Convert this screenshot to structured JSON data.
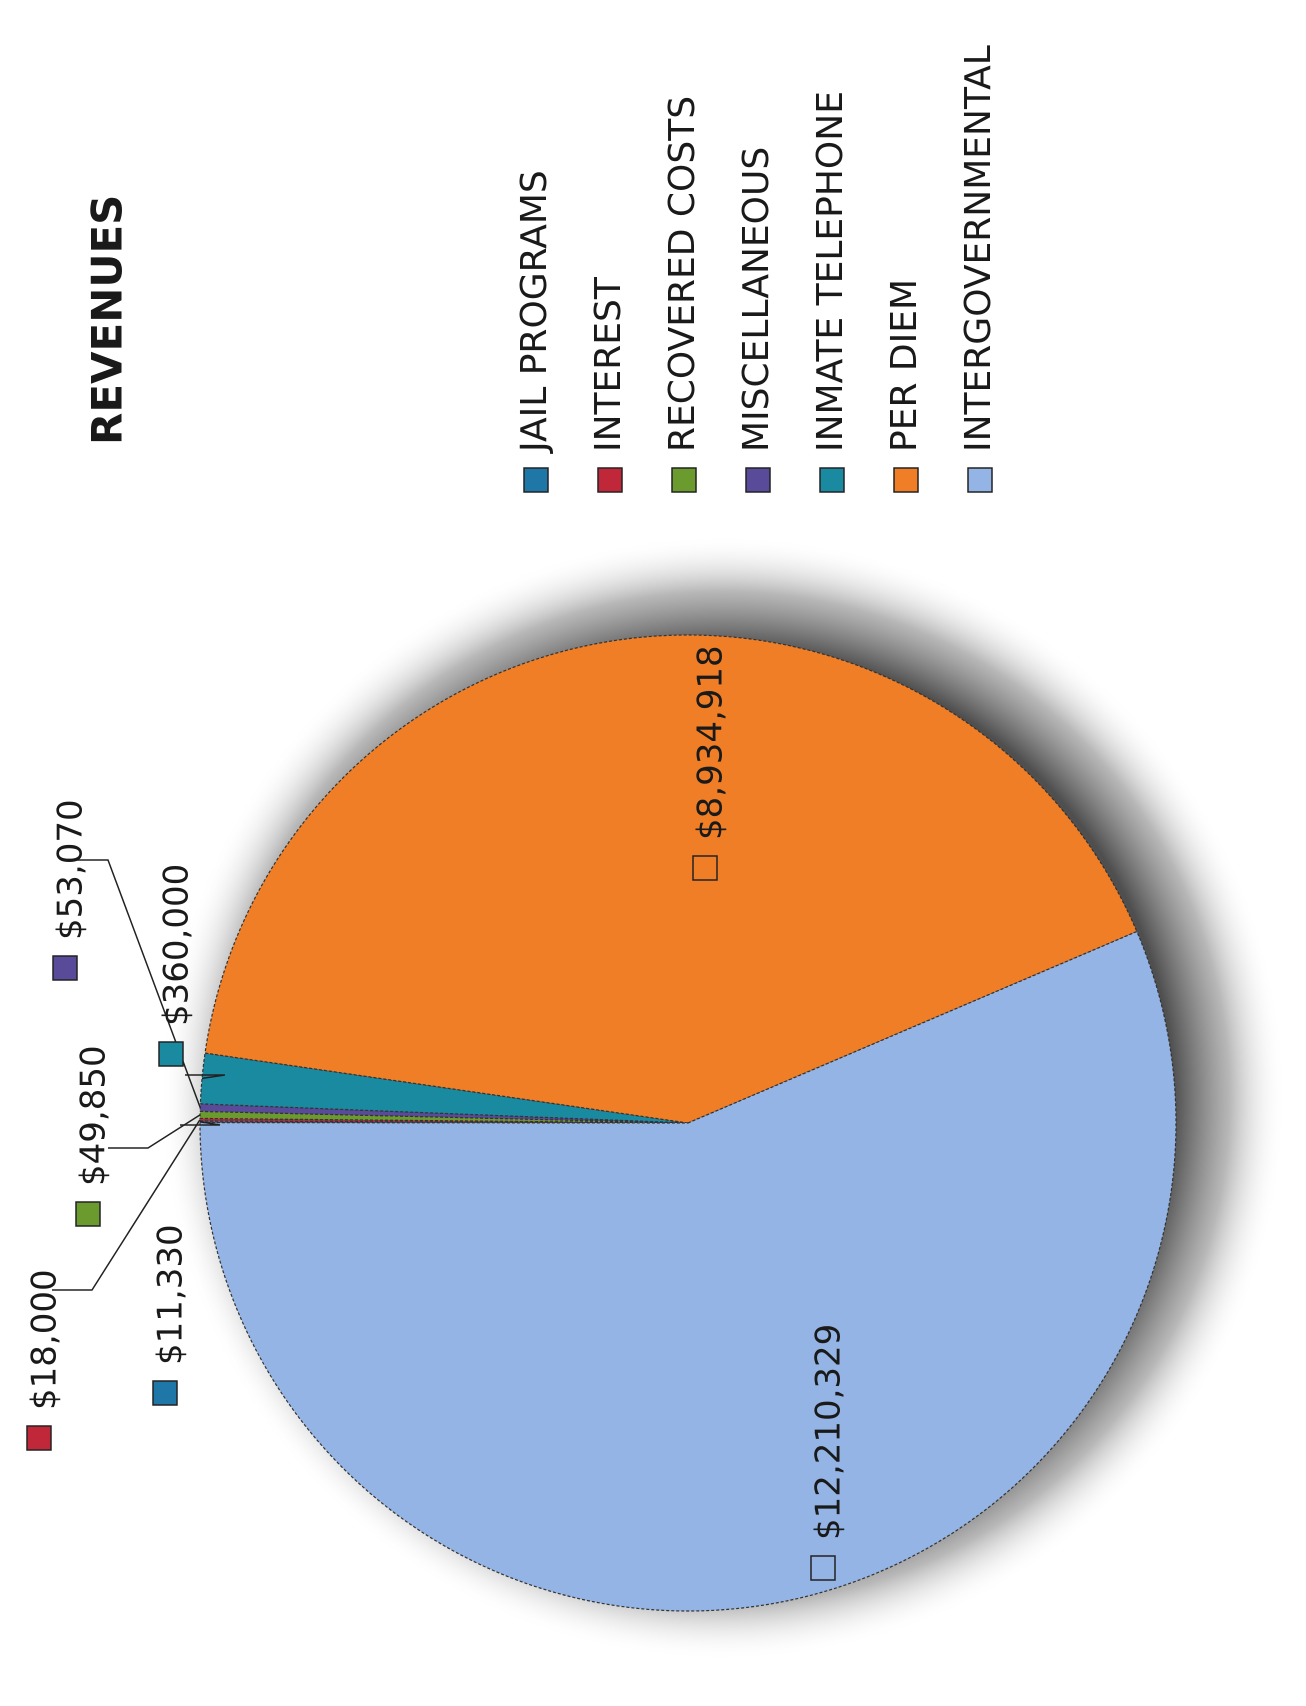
{
  "chart_data": {
    "type": "pie",
    "title": "REVENUES",
    "orientation": "rotated 90 degrees clockwise on the page",
    "legend_position": "right",
    "slices": [
      {
        "name": "JAIL PROGRAMS",
        "value": 11330,
        "label": "$11,330",
        "color": "#1f77a8"
      },
      {
        "name": "INTEREST",
        "value": 18000,
        "label": "$18,000",
        "color": "#c0283a"
      },
      {
        "name": "RECOVERED COSTS",
        "value": 49850,
        "label": "$49,850",
        "color": "#6b9a2e"
      },
      {
        "name": "MISCELLANEOUS",
        "value": 53070,
        "label": "$53,070",
        "color": "#5a4a9a"
      },
      {
        "name": "INMATE TELEPHONE",
        "value": 360000,
        "label": "$360,000",
        "color": "#1a8aa0"
      },
      {
        "name": "PER DIEM",
        "value": 8934918,
        "label": "$8,934,918",
        "color": "#f07e26"
      },
      {
        "name": "INTERGOVERNMENTAL",
        "value": 12210329,
        "label": "$12,210,329",
        "color": "#93b4e4"
      }
    ]
  }
}
